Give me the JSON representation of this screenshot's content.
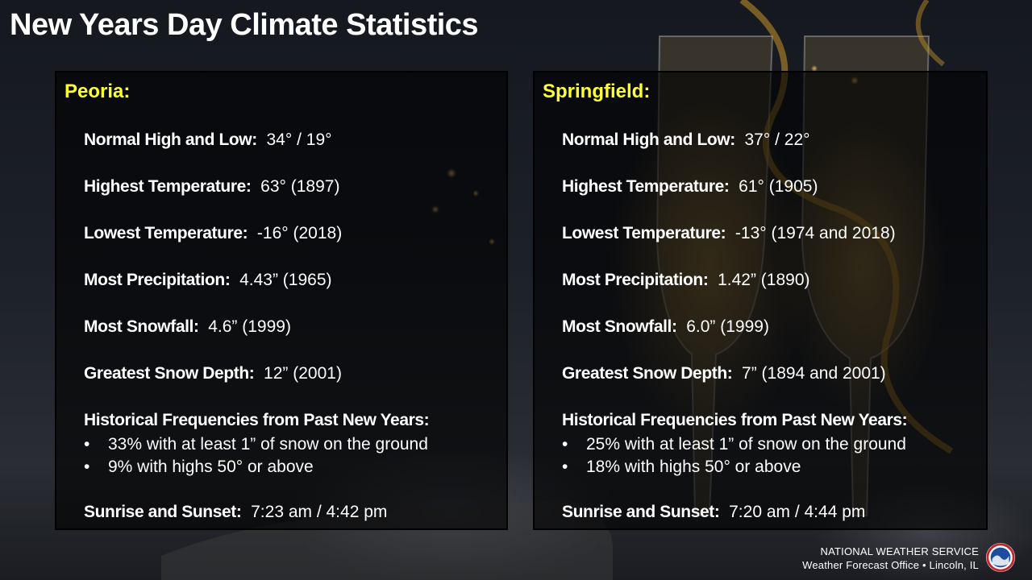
{
  "title": "New Years Day Climate Statistics",
  "panels": [
    {
      "city": "Peoria:",
      "normal_label": "Normal High and Low:",
      "normal_value": "34° / 19°",
      "highest_label": "Highest Temperature:",
      "highest_value": "63°  (1897)",
      "lowest_label": "Lowest Temperature:",
      "lowest_value": "-16°  (2018)",
      "precip_label": "Most Precipitation:",
      "precip_value": "4.43” (1965)",
      "snowfall_label": "Most Snowfall:",
      "snowfall_value": "4.6” (1999)",
      "depth_label": "Greatest Snow Depth:",
      "depth_value": "12” (2001)",
      "freq_label": "Historical Frequencies from Past New Years:",
      "bullets": [
        "33% with at least 1” of snow on the ground",
        "9% with highs 50° or above"
      ],
      "sun_label": "Sunrise and Sunset:",
      "sun_value": "7:23 am / 4:42 pm"
    },
    {
      "city": "Springfield:",
      "normal_label": "Normal High and Low:",
      "normal_value": "37° / 22°",
      "highest_label": "Highest Temperature:",
      "highest_value": "61°  (1905)",
      "lowest_label": "Lowest Temperature:",
      "lowest_value": "-13°  (1974 and 2018)",
      "precip_label": "Most Precipitation:",
      "precip_value": "1.42” (1890)",
      "snowfall_label": "Most Snowfall:",
      "snowfall_value": "6.0” (1999)",
      "depth_label": "Greatest Snow Depth:",
      "depth_value": "7” (1894 and 2001)",
      "freq_label": "Historical Frequencies from Past New Years:",
      "bullets": [
        "25% with at least 1” of snow on the ground",
        "18% with highs 50° or above"
      ],
      "sun_label": "Sunrise and Sunset:",
      "sun_value": "7:20 am / 4:44 pm"
    }
  ],
  "bullet_symbol": "•",
  "footer": {
    "line1": "NATIONAL WEATHER SERVICE",
    "line2": "Weather Forecast Office • Lincoln, IL"
  },
  "logo_icon": "nws-logo-icon",
  "colors": {
    "city": "#ffff33",
    "text": "#ffffff"
  }
}
